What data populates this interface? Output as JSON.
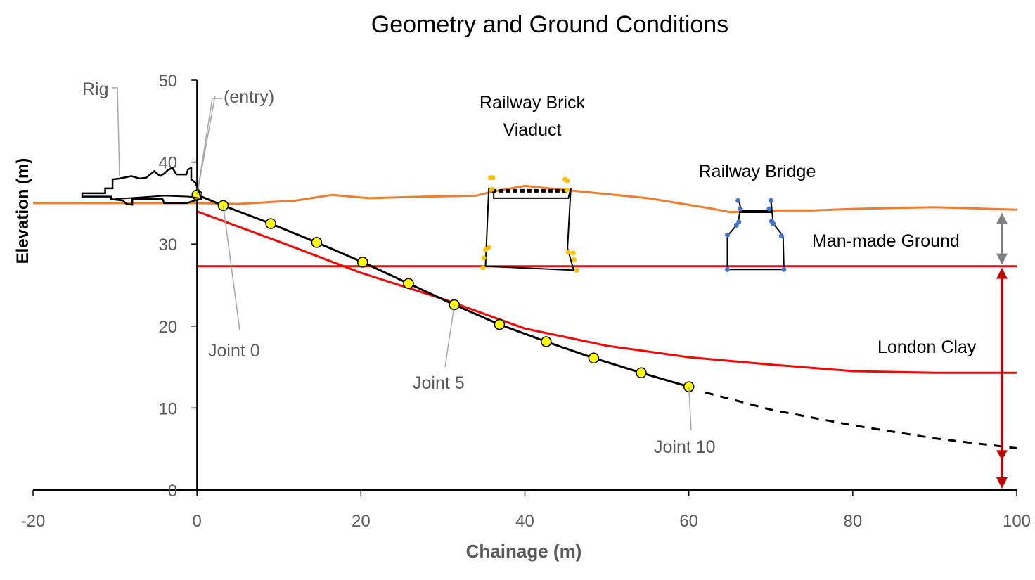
{
  "chart_data": {
    "type": "line",
    "title": "Geometry and Ground Conditions",
    "xlabel": "Chainage (m)",
    "ylabel": "Elevation (m)",
    "xlim": [
      -20,
      100
    ],
    "ylim": [
      0,
      50
    ],
    "xticks": [
      "-20",
      "0",
      "20",
      "40",
      "60",
      "80",
      "100"
    ],
    "yticks": [
      "0",
      "10",
      "20",
      "30",
      "40",
      "50"
    ],
    "colors": {
      "ground_surface": "#ED7D31",
      "clay_boundary": "#FF0000",
      "pipeline": "#000000",
      "joints_fill": "#FFFF00",
      "viaduct_points": "#FFC000",
      "bridge_points": "#4472C4",
      "man_made_arrow": "#7F7F7F",
      "london_clay_arrow": "#C00000",
      "leader": "#A6A6A6"
    },
    "series": [
      {
        "name": "Ground surface",
        "x": [
          -20,
          -10,
          0,
          5,
          12,
          16.5,
          21,
          28,
          34,
          36,
          40,
          46,
          55,
          63,
          65,
          71,
          75,
          80,
          90,
          100
        ],
        "y": [
          35,
          35,
          35,
          34.9,
          35.3,
          36,
          35.6,
          35.8,
          35.9,
          36.4,
          37.1,
          36.5,
          35.6,
          34.3,
          33.9,
          34.1,
          34.1,
          34.3,
          34.5,
          34.2
        ]
      },
      {
        "name": "London Clay top",
        "x": [
          0,
          100
        ],
        "y": [
          27.3,
          27.3
        ]
      },
      {
        "name": "Clay lower boundary",
        "x": [
          0,
          10,
          20,
          30,
          40,
          50,
          60,
          70,
          80,
          90,
          100
        ],
        "y": [
          34,
          30.3,
          26.5,
          23.3,
          19.7,
          17.6,
          16.2,
          15.3,
          14.5,
          14.3,
          14.3
        ]
      },
      {
        "name": "Pipeline",
        "x": [
          0,
          3.2,
          9,
          14.6,
          20.2,
          25.8,
          31.4,
          36.9,
          42.6,
          48.4,
          54.2,
          60
        ],
        "y": [
          36,
          34.7,
          32.5,
          30.2,
          27.8,
          25.2,
          22.6,
          20.2,
          18.1,
          16.1,
          14.3,
          12.6
        ]
      },
      {
        "name": "Pipeline extrapolation",
        "x": [
          62,
          70,
          80,
          90,
          100
        ],
        "y": [
          11.9,
          9.8,
          7.9,
          6.3,
          5.1
        ]
      },
      {
        "name": "Joints",
        "x": [
          0,
          3.2,
          9,
          14.6,
          20.2,
          25.8,
          31.4,
          36.9,
          42.6,
          48.4,
          54.2,
          60
        ],
        "y": [
          36,
          34.7,
          32.5,
          30.2,
          27.8,
          25.2,
          22.6,
          20.2,
          18.1,
          16.1,
          14.3,
          12.6
        ]
      }
    ],
    "annotations": {
      "rig": "Rig",
      "entry": "(entry)",
      "viaduct_line1": "Railway Brick",
      "viaduct_line2": "Viaduct",
      "bridge": "Railway Bridge",
      "man_made_ground": "Man-made Ground",
      "london_clay": "London Clay",
      "joint0": "Joint 0",
      "joint5": "Joint 5",
      "joint10": "Joint 10"
    }
  }
}
